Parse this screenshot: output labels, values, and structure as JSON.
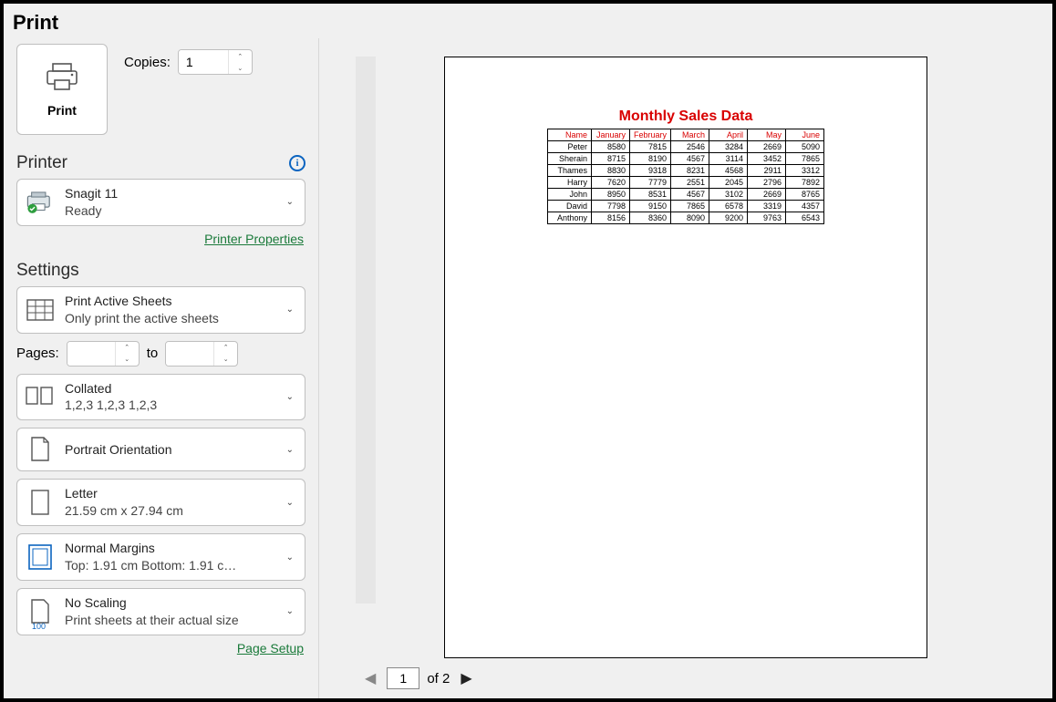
{
  "title": "Print",
  "print_button_label": "Print",
  "copies": {
    "label": "Copies:",
    "value": "1"
  },
  "printer": {
    "heading": "Printer",
    "name": "Snagit 11",
    "status": "Ready",
    "properties_link": "Printer Properties"
  },
  "settings": {
    "heading": "Settings",
    "print_what": {
      "main": "Print Active Sheets",
      "sub": "Only print the active sheets"
    },
    "pages": {
      "label": "Pages:",
      "to": "to",
      "from": "",
      "to_value": ""
    },
    "collation": {
      "main": "Collated",
      "sub": "1,2,3    1,2,3    1,2,3"
    },
    "orientation": {
      "main": "Portrait Orientation"
    },
    "paper": {
      "main": "Letter",
      "sub": "21.59 cm x 27.94 cm"
    },
    "margins": {
      "main": "Normal Margins",
      "sub": "Top: 1.91 cm Bottom: 1.91 c…"
    },
    "scaling": {
      "main": "No Scaling",
      "sub": "Print sheets at their actual size",
      "pct": "100"
    },
    "page_setup_link": "Page Setup"
  },
  "nav": {
    "current": "1",
    "of_label": "of 2"
  },
  "preview": {
    "title": "Monthly Sales Data",
    "columns": [
      "Name",
      "January",
      "February",
      "March",
      "April",
      "May",
      "June"
    ],
    "rows": [
      [
        "Peter",
        "8580",
        "7815",
        "2546",
        "3284",
        "2669",
        "5090"
      ],
      [
        "Sherain",
        "8715",
        "8190",
        "4567",
        "3114",
        "3452",
        "7865"
      ],
      [
        "Thames",
        "8830",
        "9318",
        "8231",
        "4568",
        "2911",
        "3312"
      ],
      [
        "Harry",
        "7620",
        "7779",
        "2551",
        "2045",
        "2796",
        "7892"
      ],
      [
        "John",
        "8950",
        "8531",
        "4567",
        "3102",
        "2669",
        "8765"
      ],
      [
        "David",
        "7798",
        "9150",
        "7865",
        "6578",
        "3319",
        "4357"
      ],
      [
        "Anthony",
        "8156",
        "8360",
        "8090",
        "9200",
        "9763",
        "6543"
      ]
    ]
  }
}
